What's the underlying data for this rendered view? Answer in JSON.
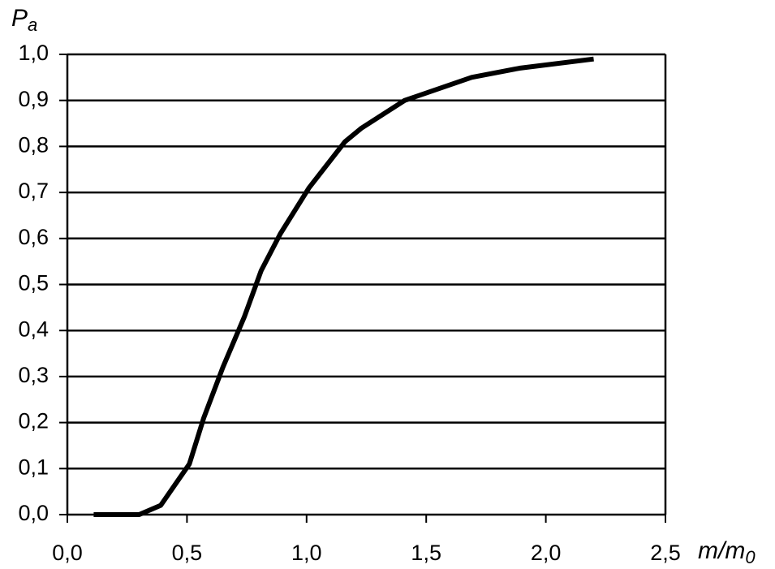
{
  "chart_data": {
    "type": "line",
    "y_label": [
      "P",
      "a"
    ],
    "x_label": [
      "m/m",
      "0"
    ],
    "x": [
      0.11,
      0.3,
      0.39,
      0.51,
      0.57,
      0.65,
      0.74,
      0.81,
      0.89,
      1.01,
      1.16,
      1.23,
      1.41,
      1.69,
      1.89,
      2.2
    ],
    "series": [
      {
        "color": "#000000",
        "values": [
          0,
          0,
          0.02,
          0.11,
          0.21,
          0.32,
          0.43,
          0.53,
          0.61,
          0.71,
          0.81,
          0.84,
          0.9,
          0.95,
          0.97,
          0.99
        ]
      }
    ],
    "xlim": [
      0,
      2.5
    ],
    "ylim": [
      0,
      1
    ],
    "xticks": [
      {
        "value": 0,
        "label": "0,0"
      },
      {
        "value": 0.5,
        "label": "0,5"
      },
      {
        "value": 1,
        "label": "1,0"
      },
      {
        "value": 1.5,
        "label": "1,5"
      },
      {
        "value": 2,
        "label": "2,0"
      },
      {
        "value": 2.5,
        "label": "2,5"
      }
    ],
    "yticks": [
      {
        "value": 0,
        "label": "0,0"
      },
      {
        "value": 0.1,
        "label": "0,1"
      },
      {
        "value": 0.2,
        "label": "0,2"
      },
      {
        "value": 0.3,
        "label": "0,3"
      },
      {
        "value": 0.4,
        "label": "0,4"
      },
      {
        "value": 0.5,
        "label": "0,5"
      },
      {
        "value": 0.6,
        "label": "0,6"
      },
      {
        "value": 0.7,
        "label": "0,7"
      },
      {
        "value": 0.8,
        "label": "0,8"
      },
      {
        "value": 0.9,
        "label": "0,9"
      },
      {
        "value": 1,
        "label": "1,0"
      }
    ],
    "grid": true
  }
}
